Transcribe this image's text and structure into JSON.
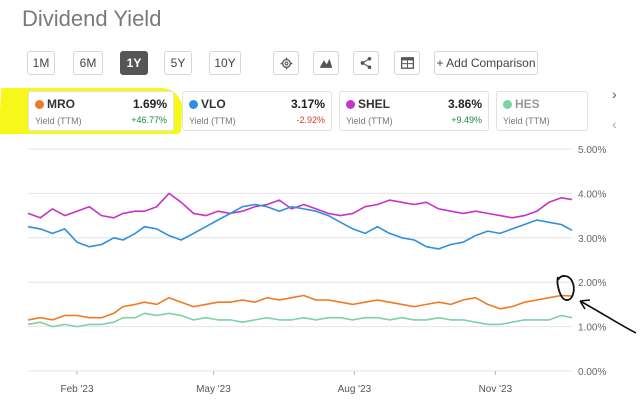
{
  "title": "Dividend Yield",
  "ranges": [
    "1M",
    "6M",
    "1Y",
    "5Y",
    "10Y"
  ],
  "active_range": "1Y",
  "tools": [
    "gear-icon",
    "mountain-chart-icon",
    "share-icon",
    "table-icon"
  ],
  "compare_label": "+ Add Comparison",
  "nav": {
    "next": "›",
    "prev": "‹"
  },
  "colors": {
    "MRO": "#f07a24",
    "VLO": "#2f8fde",
    "SHEL": "#c634c6",
    "HES": "#7fd1a6",
    "highlight": "#f7f71a",
    "positive": "#1e8a3a",
    "negative": "#d23a2a"
  },
  "cards": [
    {
      "symbol": "MRO",
      "value": "1.69%",
      "sub": "Yield (TTM)",
      "change": "+46.77%",
      "positive": true
    },
    {
      "symbol": "VLO",
      "value": "3.17%",
      "sub": "Yield (TTM)",
      "change": "-2.92%",
      "positive": false
    },
    {
      "symbol": "SHEL",
      "value": "3.86%",
      "sub": "Yield (TTM)",
      "change": "+9.49%",
      "positive": true
    },
    {
      "symbol": "HES",
      "value": "",
      "sub": "Yield (TTM)",
      "change": "",
      "positive": true
    }
  ],
  "chart_data": {
    "type": "line",
    "x_tick_labels": [
      "Feb '23",
      "May '23",
      "Aug '23",
      "Nov '23"
    ],
    "y_tick_labels": [
      "5.00%",
      "4.00%",
      "3.00%",
      "2.00%",
      "1.00%",
      "0.00%"
    ],
    "ylim": [
      0,
      5
    ],
    "x_range_days": [
      0,
      355
    ],
    "x_tick_days": [
      32,
      121,
      213,
      305
    ],
    "grid": true,
    "series": [
      {
        "name": "SHEL",
        "color": "#c634c6",
        "x": [
          0,
          8,
          16,
          24,
          32,
          40,
          48,
          56,
          62,
          70,
          76,
          84,
          92,
          100,
          108,
          116,
          124,
          132,
          140,
          148,
          156,
          164,
          172,
          180,
          188,
          196,
          204,
          212,
          220,
          228,
          236,
          244,
          252,
          260,
          268,
          276,
          284,
          292,
          300,
          308,
          316,
          324,
          332,
          340,
          348,
          355
        ],
        "y": [
          3.55,
          3.45,
          3.65,
          3.5,
          3.6,
          3.7,
          3.5,
          3.45,
          3.55,
          3.6,
          3.6,
          3.7,
          4.0,
          3.8,
          3.55,
          3.5,
          3.6,
          3.55,
          3.6,
          3.7,
          3.75,
          3.85,
          3.65,
          3.75,
          3.65,
          3.55,
          3.5,
          3.55,
          3.7,
          3.75,
          3.85,
          3.8,
          3.75,
          3.8,
          3.65,
          3.6,
          3.55,
          3.6,
          3.55,
          3.5,
          3.45,
          3.5,
          3.6,
          3.8,
          3.9,
          3.86
        ]
      },
      {
        "name": "VLO",
        "color": "#2f8fde",
        "x": [
          0,
          8,
          16,
          24,
          32,
          40,
          48,
          56,
          62,
          70,
          76,
          84,
          92,
          100,
          108,
          116,
          124,
          132,
          140,
          148,
          156,
          164,
          172,
          180,
          188,
          196,
          204,
          212,
          220,
          228,
          236,
          244,
          252,
          260,
          268,
          276,
          284,
          292,
          300,
          308,
          316,
          324,
          332,
          340,
          348,
          355
        ],
        "y": [
          3.25,
          3.2,
          3.1,
          3.2,
          2.9,
          2.8,
          2.85,
          3.0,
          2.95,
          3.1,
          3.25,
          3.2,
          3.05,
          2.95,
          3.1,
          3.25,
          3.4,
          3.55,
          3.7,
          3.75,
          3.7,
          3.6,
          3.7,
          3.65,
          3.6,
          3.5,
          3.35,
          3.2,
          3.1,
          3.25,
          3.1,
          3.0,
          2.95,
          2.8,
          2.75,
          2.85,
          2.9,
          3.05,
          3.15,
          3.1,
          3.2,
          3.3,
          3.4,
          3.35,
          3.3,
          3.17
        ]
      },
      {
        "name": "MRO",
        "color": "#f07a24",
        "x": [
          0,
          8,
          16,
          24,
          32,
          40,
          48,
          56,
          62,
          70,
          76,
          84,
          92,
          100,
          108,
          116,
          124,
          132,
          140,
          148,
          156,
          164,
          172,
          180,
          188,
          196,
          204,
          212,
          220,
          228,
          236,
          244,
          252,
          260,
          268,
          276,
          284,
          292,
          300,
          308,
          316,
          324,
          332,
          340,
          348,
          355
        ],
        "y": [
          1.15,
          1.2,
          1.15,
          1.25,
          1.25,
          1.2,
          1.2,
          1.3,
          1.45,
          1.5,
          1.55,
          1.5,
          1.65,
          1.55,
          1.45,
          1.5,
          1.55,
          1.55,
          1.6,
          1.55,
          1.65,
          1.6,
          1.65,
          1.7,
          1.6,
          1.6,
          1.55,
          1.5,
          1.55,
          1.6,
          1.55,
          1.5,
          1.45,
          1.5,
          1.55,
          1.5,
          1.6,
          1.65,
          1.5,
          1.4,
          1.45,
          1.55,
          1.6,
          1.65,
          1.7,
          1.69
        ]
      },
      {
        "name": "HES",
        "color": "#7fd1a6",
        "x": [
          0,
          8,
          16,
          24,
          32,
          40,
          48,
          56,
          62,
          70,
          76,
          84,
          92,
          100,
          108,
          116,
          124,
          132,
          140,
          148,
          156,
          164,
          172,
          180,
          188,
          196,
          204,
          212,
          220,
          228,
          236,
          244,
          252,
          260,
          268,
          276,
          284,
          292,
          300,
          308,
          316,
          324,
          332,
          340,
          348,
          355
        ],
        "y": [
          1.05,
          1.1,
          1.0,
          1.05,
          1.0,
          1.05,
          1.05,
          1.1,
          1.2,
          1.2,
          1.3,
          1.25,
          1.3,
          1.25,
          1.15,
          1.2,
          1.15,
          1.15,
          1.1,
          1.15,
          1.2,
          1.15,
          1.15,
          1.2,
          1.15,
          1.2,
          1.2,
          1.15,
          1.2,
          1.2,
          1.15,
          1.2,
          1.15,
          1.15,
          1.2,
          1.15,
          1.15,
          1.1,
          1.05,
          1.05,
          1.1,
          1.15,
          1.15,
          1.15,
          1.25,
          1.2
        ]
      }
    ]
  }
}
